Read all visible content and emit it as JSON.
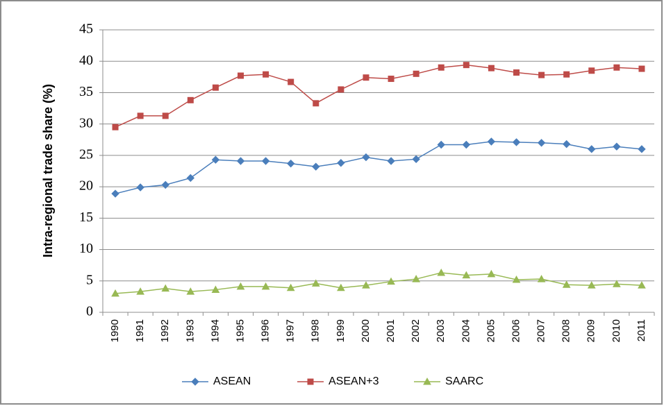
{
  "chart_data": {
    "type": "line",
    "y_label": "Intra-regional trade share (%)",
    "categories": [
      "1990",
      "1991",
      "1992",
      "1993",
      "1994",
      "1995",
      "1996",
      "1997",
      "1998",
      "1999",
      "2000",
      "2001",
      "2002",
      "2003",
      "2004",
      "2005",
      "2006",
      "2007",
      "2008",
      "2009",
      "2010",
      "2011"
    ],
    "series": [
      {
        "name": "ASEAN",
        "color": "#4a7ebb",
        "marker": "diamond",
        "values": [
          18.9,
          19.9,
          20.3,
          21.4,
          24.3,
          24.1,
          24.1,
          23.7,
          23.2,
          23.8,
          24.7,
          24.1,
          24.4,
          26.7,
          26.7,
          27.2,
          27.1,
          27.0,
          26.8,
          26.0,
          26.4,
          26.0
        ]
      },
      {
        "name": "ASEAN+3",
        "color": "#be4b48",
        "marker": "square",
        "values": [
          29.5,
          31.3,
          31.3,
          33.8,
          35.8,
          37.7,
          37.9,
          36.7,
          33.3,
          35.5,
          37.4,
          37.2,
          38.0,
          39.0,
          39.4,
          38.9,
          38.2,
          37.8,
          37.9,
          38.5,
          39.0,
          38.8
        ]
      },
      {
        "name": "SAARC",
        "color": "#98b954",
        "marker": "triangle",
        "values": [
          3.0,
          3.3,
          3.8,
          3.3,
          3.6,
          4.1,
          4.1,
          3.9,
          4.6,
          3.9,
          4.3,
          4.9,
          5.3,
          6.3,
          5.9,
          6.1,
          5.2,
          5.3,
          4.4,
          4.3,
          4.5,
          4.3
        ]
      }
    ],
    "ylim": [
      0,
      45
    ],
    "yticks": [
      0,
      5,
      10,
      15,
      20,
      25,
      30,
      35,
      40,
      45
    ],
    "grid": true,
    "legend": "bottom"
  }
}
